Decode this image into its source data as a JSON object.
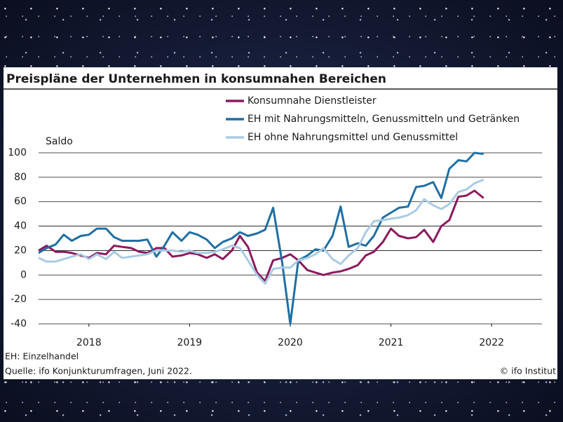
{
  "chart_data": {
    "type": "line",
    "title": "Preispläne der Unternehmen in konsumnahen Bereichen",
    "y_label": "Saldo",
    "x": [
      2018,
      2018.08,
      2018.17,
      2018.25,
      2018.33,
      2018.42,
      2018.5,
      2018.58,
      2018.67,
      2018.75,
      2018.83,
      2018.92,
      2019,
      2019.08,
      2019.17,
      2019.25,
      2019.33,
      2019.42,
      2019.5,
      2019.58,
      2019.67,
      2019.75,
      2019.83,
      2019.92,
      2020,
      2020.08,
      2020.17,
      2020.25,
      2020.33,
      2020.42,
      2020.5,
      2020.58,
      2020.67,
      2020.75,
      2020.83,
      2020.92,
      2021,
      2021.08,
      2021.17,
      2021.25,
      2021.33,
      2021.42,
      2021.5,
      2021.58,
      2021.67,
      2021.75,
      2021.83,
      2021.92,
      2022,
      2022.08,
      2022.17,
      2022.25,
      2022.33,
      2022.42
    ],
    "series": [
      {
        "name": "Konsumnahe Dienstleister",
        "color": "#8b1a5e",
        "values": [
          20,
          24,
          19,
          19,
          18,
          16,
          14,
          18,
          17,
          24,
          23,
          22,
          19,
          18,
          22,
          22,
          15,
          16,
          18,
          17,
          14,
          17,
          13,
          20,
          32,
          23,
          2,
          -5,
          12,
          14,
          17,
          12,
          4,
          2,
          0,
          2,
          3,
          5,
          8,
          16,
          19,
          27,
          38,
          32,
          30,
          31,
          37,
          27,
          40,
          45,
          64,
          65,
          69,
          63
        ]
      },
      {
        "name": "EH mit Nahrungsmitteln, Genussmitteln und Getränken",
        "color": "#1f6fa3",
        "values": [
          18,
          22,
          25,
          33,
          28,
          32,
          33,
          38,
          38,
          31,
          28,
          28,
          28,
          29,
          15,
          24,
          35,
          28,
          35,
          33,
          29,
          22,
          27,
          30,
          35,
          32,
          34,
          37,
          55,
          10,
          -40,
          12,
          16,
          21,
          20,
          32,
          56,
          23,
          26,
          24,
          32,
          47,
          51,
          55,
          56,
          72,
          73,
          76,
          63,
          87,
          94,
          93,
          100,
          99
        ]
      },
      {
        "name": "EH ohne Nahrungsmittel und Genussmittel",
        "color": "#a9cbe3",
        "values": [
          14,
          11,
          11,
          13,
          15,
          17,
          13,
          17,
          13,
          19,
          14,
          15,
          16,
          17,
          20,
          20,
          20,
          19,
          20,
          18,
          18,
          19,
          21,
          24,
          22,
          12,
          0,
          -7,
          5,
          6,
          6,
          12,
          14,
          17,
          22,
          13,
          9,
          16,
          22,
          35,
          44,
          45,
          46,
          47,
          49,
          53,
          62,
          57,
          54,
          58,
          68,
          70,
          75,
          78
        ]
      }
    ],
    "xlim": [
      2018,
      2023
    ],
    "xticks": [
      {
        "value": 2018.5,
        "label": "2018"
      },
      {
        "value": 2019.5,
        "label": "2019"
      },
      {
        "value": 2020.5,
        "label": "2020"
      },
      {
        "value": 2021.5,
        "label": "2021"
      },
      {
        "value": 2022.5,
        "label": "2022"
      }
    ],
    "ylim": [
      -40,
      100
    ],
    "yticks": [
      -40,
      -20,
      0,
      20,
      40,
      60,
      80,
      100
    ],
    "grid": true,
    "note": "EH: Einzelhandel",
    "source": "Quelle: ifo Konjunkturumfragen, Juni 2022.",
    "credit": "© ifo Institut"
  }
}
